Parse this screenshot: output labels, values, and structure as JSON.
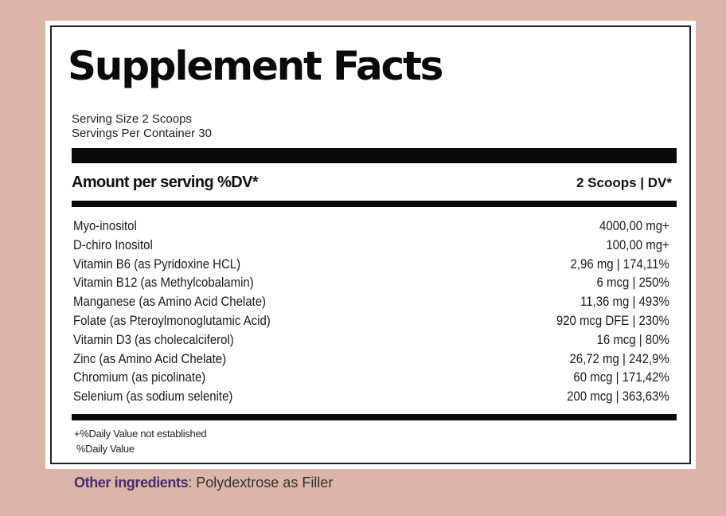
{
  "label": {
    "title": "Supplement Facts",
    "serving_size": "Serving Size 2 Scoops",
    "servings_per_container": "Servings Per Container 30",
    "header_left": "Amount per serving %DV*",
    "header_right": "2 Scoops | DV*",
    "nutrients": [
      {
        "name": "Myo-inositol",
        "amount": "4000,00 mg+"
      },
      {
        "name": "D-chiro Inositol",
        "amount": "100,00 mg+"
      },
      {
        "name": "Vitamin B6 (as Pyridoxine HCL)",
        "amount": "2,96 mg | 174,11%"
      },
      {
        "name": "Vitamin B12 (as Methylcobalamin)",
        "amount": "6 mcg | 250%"
      },
      {
        "name": "Manganese (as Amino Acid Chelate)",
        "amount": "11,36 mg | 493%"
      },
      {
        "name": "Folate (as Pteroylmonoglutamic Acid)",
        "amount": "920 mcg DFE | 230%"
      },
      {
        "name": "Vitamin D3 (as cholecalciferol)",
        "amount": "16 mcg | 80%"
      },
      {
        "name": "Zinc (as Amino Acid Chelate)",
        "amount": "26,72 mg | 242,9%"
      },
      {
        "name": "Chromium (as picolinate)",
        "amount": "60 mcg | 171,42%"
      },
      {
        "name": "Selenium (as sodium selenite)",
        "amount": "200 mcg | 363,63%"
      }
    ],
    "footnote_1": "+%Daily Value not established",
    "footnote_2": "%Daily Value"
  },
  "other_ingredients": {
    "label": "Other ingredients",
    "separator": ":",
    "value": " Polydextrose as Filler"
  }
}
